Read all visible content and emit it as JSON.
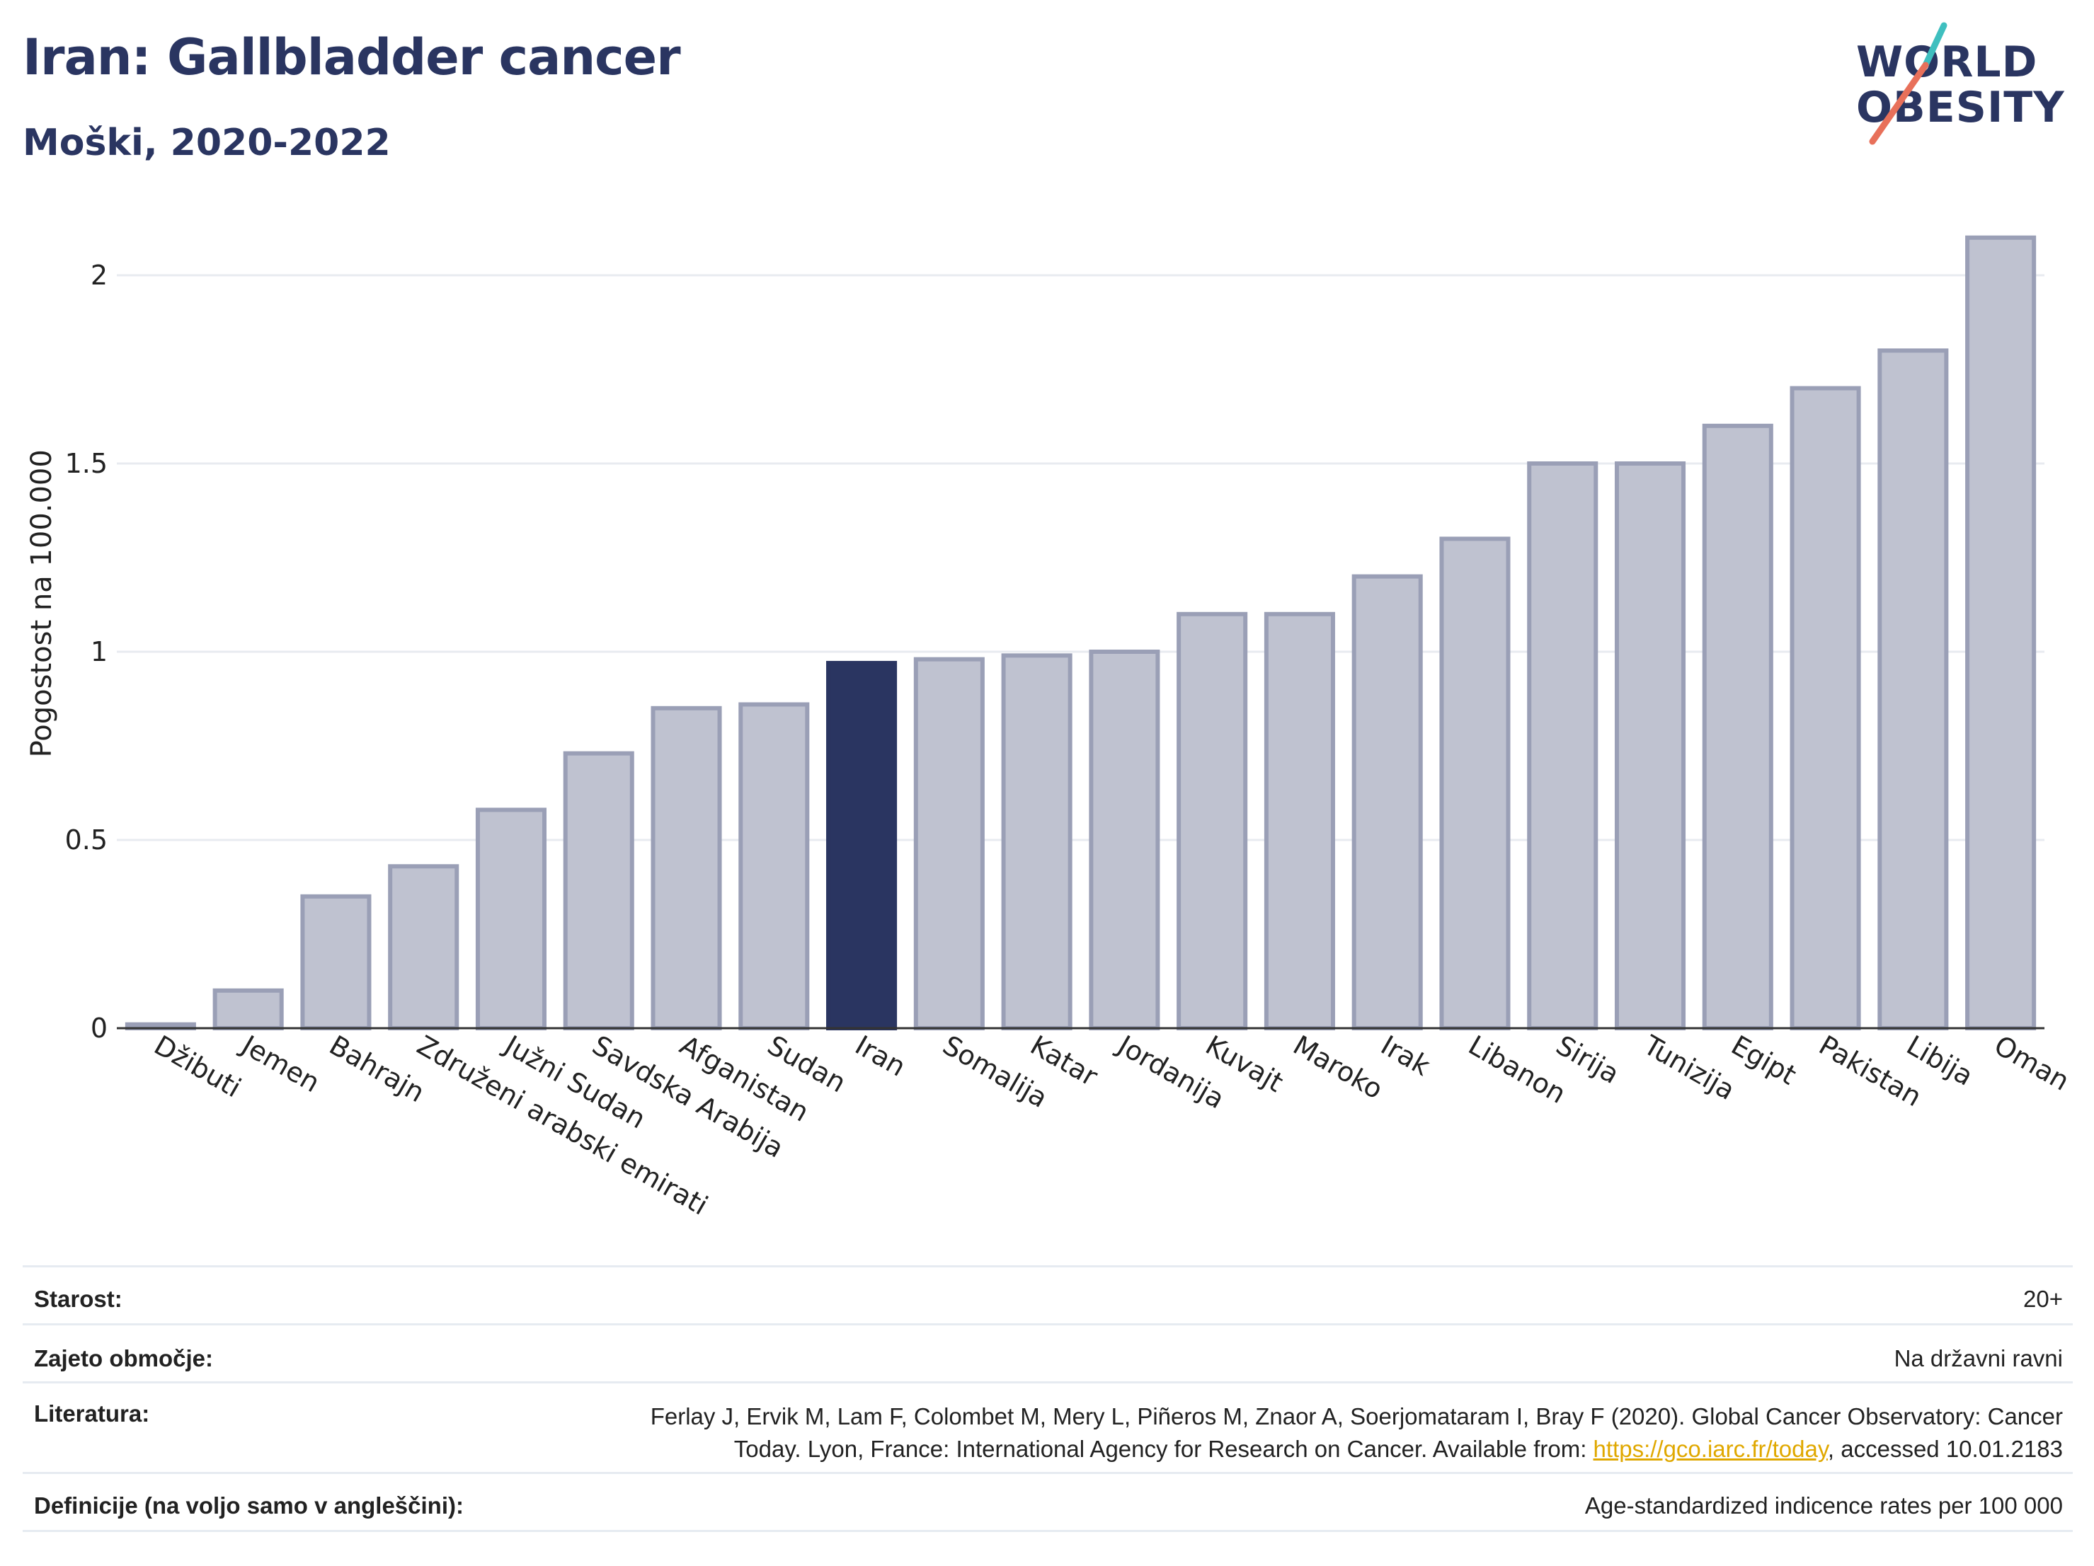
{
  "header": {
    "title": "Iran: Gallbladder cancer",
    "subtitle": "Moški, 2020-2022"
  },
  "logo": {
    "line1": "WORLD",
    "line2": "OBESITY",
    "accent_colors": [
      "#3fbfbf",
      "#e8705a"
    ]
  },
  "colors": {
    "highlight_bar": "#2a3561",
    "other_bar_fill": "#bfc2d0",
    "other_bar_stroke": "#9a9fb6",
    "gridline": "#e8ebf0",
    "axis": "#333333"
  },
  "chart_data": {
    "type": "bar",
    "ylabel": "Pogostost na 100.000",
    "ylim": [
      0,
      2.2
    ],
    "yticks": [
      0,
      0.5,
      1,
      1.5,
      2
    ],
    "ytick_labels": [
      "0",
      "0.5",
      "1",
      "1.5",
      "2"
    ],
    "highlight": "Iran",
    "grid": true,
    "categories": [
      "Džibuti",
      "Jemen",
      "Bahrajn",
      "Združeni arabski emirati",
      "Južni Sudan",
      "Savdska Arabija",
      "Afganistan",
      "Sudan",
      "Iran",
      "Somalija",
      "Katar",
      "Jordanija",
      "Kuvajt",
      "Maroko",
      "Irak",
      "Libanon",
      "Sirija",
      "Tunizija",
      "Egipt",
      "Pakistan",
      "Libija",
      "Oman"
    ],
    "values": [
      0.01,
      0.1,
      0.35,
      0.43,
      0.58,
      0.73,
      0.85,
      0.86,
      0.97,
      0.98,
      0.99,
      1.0,
      1.1,
      1.1,
      1.2,
      1.3,
      1.5,
      1.5,
      1.6,
      1.7,
      1.8,
      2.1
    ]
  },
  "details": {
    "age_label": "Starost:",
    "age_value": "20+",
    "coverage_label": "Zajeto območje:",
    "coverage_value": "Na državni ravni",
    "reference_label": "Literatura:",
    "reference_line1": "Ferlay J, Ervik M, Lam F, Colombet M, Mery L, Piñeros M, Znaor A, Soerjomataram I, Bray F (2020). Global Cancer Observatory: Cancer",
    "reference_line2_pre": "Today. Lyon, France: International Agency for Research on Cancer. Available from: ",
    "reference_link": "https://gco.iarc.fr/today",
    "reference_line2_post": ", accessed 10.01.2183",
    "definitions_label": "Definicije (na voljo samo v angleščini):",
    "definitions_value": "Age-standardized indicence rates per 100 000"
  }
}
